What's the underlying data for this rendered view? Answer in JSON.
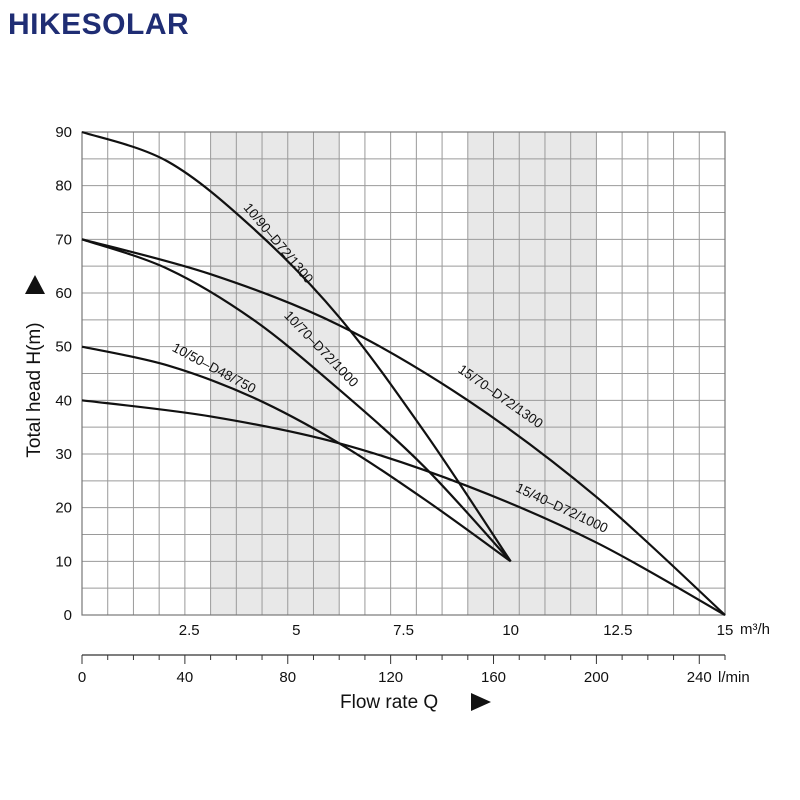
{
  "brand": {
    "name": "HIKESOLAR"
  },
  "chart_data": {
    "type": "line",
    "title": "",
    "xlabel": "Flow rate Q",
    "ylabel": "Total head H(m)",
    "x_unit": "m³/h",
    "x_unit_secondary": "l/min",
    "xlim": [
      0,
      15
    ],
    "ylim": [
      0,
      90
    ],
    "x_ticks": [
      "2.5",
      "5",
      "7.5",
      "10",
      "12.5",
      "15"
    ],
    "x_tick_values": [
      2.5,
      5,
      7.5,
      10,
      12.5,
      15
    ],
    "secondary_x_ticks": [
      "0",
      "40",
      "80",
      "120",
      "160",
      "200",
      "240"
    ],
    "secondary_x_tick_values": [
      0,
      40,
      80,
      120,
      160,
      200,
      240
    ],
    "y_ticks": [
      "0",
      "10",
      "20",
      "30",
      "40",
      "50",
      "60",
      "70",
      "80",
      "90"
    ],
    "y_tick_values": [
      0,
      10,
      20,
      30,
      40,
      50,
      60,
      70,
      80,
      90
    ],
    "shaded_x_ranges": [
      [
        3,
        6
      ],
      [
        9,
        12
      ]
    ],
    "grid": true,
    "series": [
      {
        "name": "10/90–D72/1300",
        "x": [
          0,
          2,
          4,
          6,
          8,
          10
        ],
        "y": [
          90,
          84.5,
          72,
          55.5,
          34,
          10
        ]
      },
      {
        "name": "10/70–D72/1000",
        "x": [
          0,
          2,
          4,
          6,
          8,
          10
        ],
        "y": [
          70,
          64.5,
          55,
          42,
          27.5,
          10
        ]
      },
      {
        "name": "10/50–D48/750",
        "x": [
          0,
          2,
          4,
          6,
          8,
          10
        ],
        "y": [
          50,
          46.5,
          40.5,
          32,
          21.5,
          10
        ]
      },
      {
        "name": "15/70–D72/1300",
        "x": [
          0,
          3,
          6,
          9,
          12,
          15
        ],
        "y": [
          70,
          63.5,
          54,
          40,
          22,
          0
        ]
      },
      {
        "name": "15/40–D72/1000",
        "x": [
          0,
          3,
          6,
          9,
          12,
          15
        ],
        "y": [
          40,
          37,
          32,
          24,
          13.5,
          0
        ]
      }
    ]
  }
}
